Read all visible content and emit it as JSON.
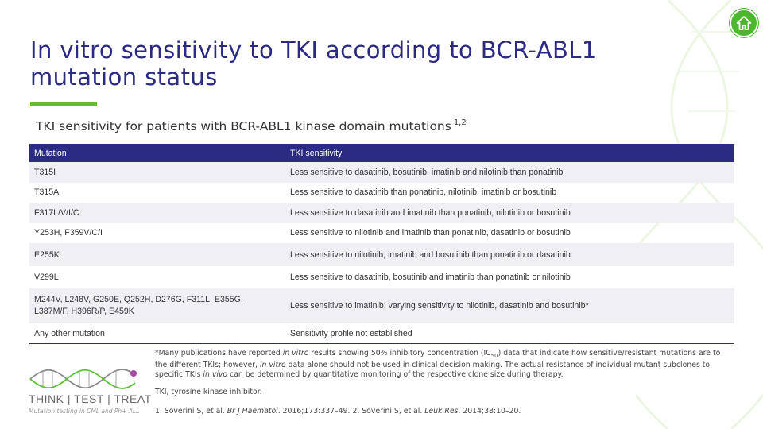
{
  "title": {
    "line1": "In vitro sensitivity to TKI according to BCR-ABL1",
    "line2": "mutation status"
  },
  "subtitle": {
    "text": "TKI sensitivity for patients with BCR-ABL1 kinase domain mutations",
    "refs": "1,2"
  },
  "colors": {
    "navy": "#2b2b84",
    "title": "#2a2a82",
    "accent_green": "#5cc132",
    "home_green": "#4cb82e"
  },
  "icons": {
    "home": "home-icon"
  },
  "table": {
    "headers": [
      "Mutation",
      "TKI sensitivity"
    ],
    "rows": [
      {
        "mutation": "T315I",
        "sensitivity": "Less sensitive to dasatinib, bosutinib, imatinib and nilotinib than ponatinib"
      },
      {
        "mutation": "T315A",
        "sensitivity": "Less sensitive to dasatinib than ponatinib, nilotinib, imatinib or bosutinib"
      },
      {
        "mutation": "F317L/V/I/C",
        "sensitivity": "Less sensitive to dasatinib and imatinib than ponatinib, nilotinib or bosutinib"
      },
      {
        "mutation": "Y253H, F359V/C/I",
        "sensitivity": "Less sensitive to nilotinib and imatinib than ponatinib, dasatinib or bosutinib"
      },
      {
        "mutation": "E255K",
        "sensitivity": "Less sensitive to nilotinib, imatinib and bosutinib than ponatinib or dasatinib"
      },
      {
        "mutation": "V299L",
        "sensitivity": "Less sensitive to dasatinib, bosutinib and imatinib than ponatinib or nilotinib"
      },
      {
        "mutation_line1": "M244V, L248V, G250E, Q252H, D276G, F311L, E355G,",
        "mutation_line2": "L387M/F, H396R/P, E459K",
        "sensitivity": "Less sensitive to imatinib; varying sensitivity to nilotinib, dasatinib and bosutinib*"
      },
      {
        "mutation": "Any other mutation",
        "sensitivity": "Sensitivity profile not established"
      }
    ]
  },
  "footnote": {
    "p1": "*Many publications have reported ",
    "i1": "in vitro",
    "p2": " results showing 50% inhibitory concentration (IC",
    "sub": "50",
    "p3": ") data that indicate how sensitive/resistant mutations are to the different TKIs; however, ",
    "i2": "in vitro",
    "p4": " data alone should not be used in clinical decision making. The actual resistance of individual mutant subclones to specific TKIs ",
    "i3": "in vivo",
    "p5": " can be determined by quantitative monitoring of the respective clone size during therapy."
  },
  "abbreviation": "TKI, tyrosine kinase inhibitor.",
  "references": {
    "a": "1. Soverini S, et al. ",
    "journal1": "Br J Haematol",
    "b": ". 2016;173:337–49. 2. Soverini S, et al. ",
    "journal2": "Leuk Res",
    "c": ". 2014;38:10–20."
  },
  "logo": {
    "text": "THINK | TEST | TREAT",
    "tagline": "Mutation testing in CML and Ph+ ALL"
  }
}
